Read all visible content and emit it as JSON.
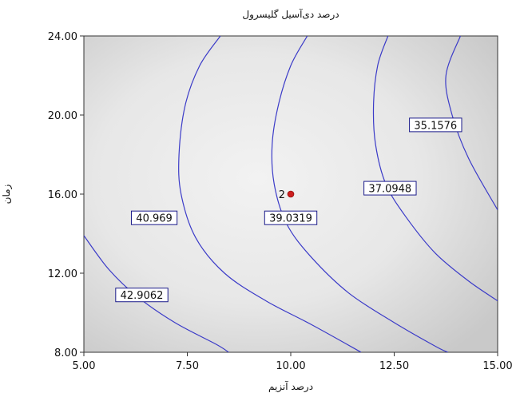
{
  "chart_data": {
    "type": "contour",
    "title": "درصد دی‌آسیل گلیسرول",
    "xlabel": "درصد آنزیم",
    "ylabel": "زمان",
    "xlim": [
      5.0,
      15.0
    ],
    "ylim": [
      8.0,
      24.0
    ],
    "x_tick_labels": [
      "5.00",
      "7.50",
      "10.00",
      "12.50",
      "15.00"
    ],
    "y_tick_labels": [
      "8.00",
      "12.00",
      "16.00",
      "20.00",
      "24.00"
    ],
    "grid": false,
    "background": "grayscale response surface, lighter toward center",
    "line_color": "#3b3bc8",
    "point_color": "#cc1f1f",
    "contours": [
      {
        "label": "42.9062",
        "label_at": [
          6.4,
          10.9
        ],
        "points": [
          [
            5.0,
            13.9
          ],
          [
            5.6,
            12.2
          ],
          [
            6.3,
            10.8
          ],
          [
            7.2,
            9.5
          ],
          [
            8.2,
            8.4
          ],
          [
            8.5,
            8.0
          ]
        ]
      },
      {
        "label": "40.969",
        "label_at": [
          6.7,
          14.8
        ],
        "points": [
          [
            8.3,
            24.0
          ],
          [
            7.8,
            22.5
          ],
          [
            7.45,
            20.5
          ],
          [
            7.3,
            18.0
          ],
          [
            7.35,
            16.0
          ],
          [
            7.7,
            13.8
          ],
          [
            8.4,
            12.0
          ],
          [
            9.4,
            10.6
          ],
          [
            10.5,
            9.4
          ],
          [
            11.7,
            8.0
          ]
        ]
      },
      {
        "label": "39.0319",
        "label_at": [
          10.0,
          14.8
        ],
        "points": [
          [
            10.4,
            24.0
          ],
          [
            10.0,
            22.5
          ],
          [
            9.7,
            20.5
          ],
          [
            9.55,
            18.5
          ],
          [
            9.6,
            16.5
          ],
          [
            9.9,
            14.5
          ],
          [
            10.5,
            12.8
          ],
          [
            11.4,
            11.0
          ],
          [
            12.5,
            9.5
          ],
          [
            13.5,
            8.3
          ],
          [
            13.8,
            8.0
          ]
        ]
      },
      {
        "label": "37.0948",
        "label_at": [
          12.4,
          16.3
        ],
        "points": [
          [
            12.35,
            24.0
          ],
          [
            12.1,
            22.5
          ],
          [
            12.0,
            20.5
          ],
          [
            12.05,
            18.5
          ],
          [
            12.3,
            16.5
          ],
          [
            12.8,
            14.8
          ],
          [
            13.5,
            13.0
          ],
          [
            14.3,
            11.6
          ],
          [
            15.0,
            10.6
          ]
        ]
      },
      {
        "label": "35.1576",
        "label_at": [
          13.5,
          19.5
        ],
        "points": [
          [
            14.1,
            24.0
          ],
          [
            13.75,
            22.0
          ],
          [
            13.9,
            20.0
          ],
          [
            14.3,
            17.8
          ],
          [
            15.0,
            15.2
          ]
        ]
      }
    ],
    "points": [
      {
        "label": "2",
        "x": 10.0,
        "y": 16.0
      }
    ]
  }
}
